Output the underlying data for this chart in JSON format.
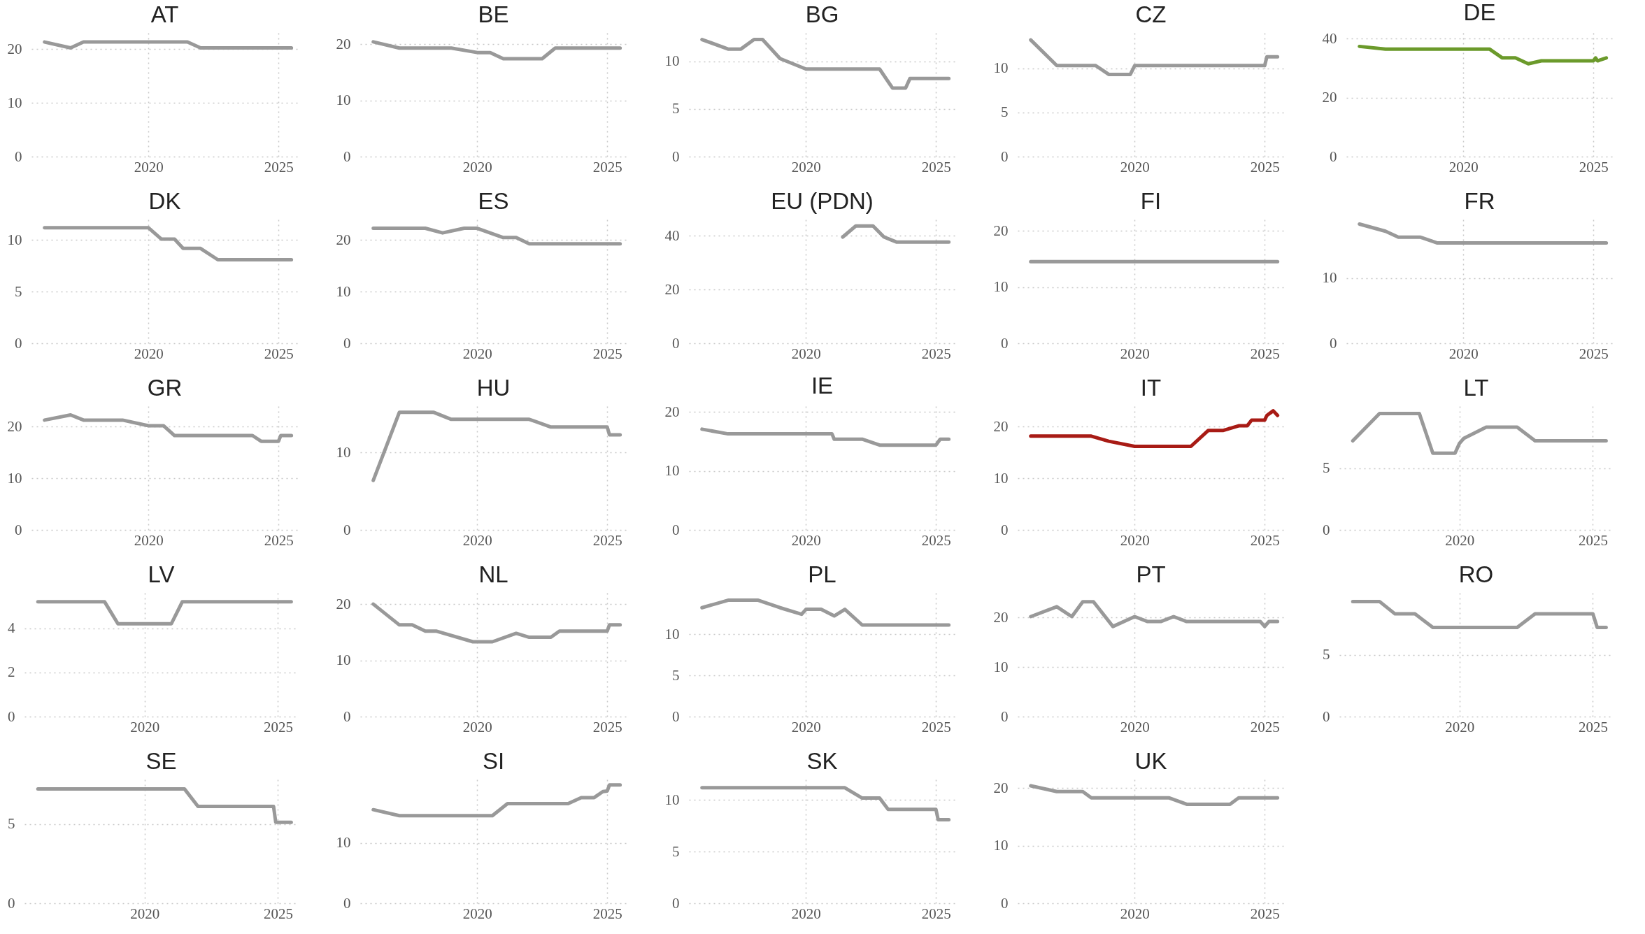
{
  "chart_data": [
    {
      "type": "line",
      "title": "AT",
      "x": [
        "2016",
        "2017",
        "2017-07",
        "2021-07",
        "2022",
        "2025-07"
      ],
      "series": [
        {
          "color": "#999999",
          "values": [
            21.3,
            20.2,
            21.3,
            21.3,
            20.2,
            20.2
          ]
        }
      ],
      "xlim": [
        "2015-07",
        "2025-10"
      ],
      "xticks": [
        "2020",
        "2025"
      ],
      "ylim": [
        0,
        23
      ],
      "yticks": [
        0,
        10,
        20
      ],
      "grid": true
    },
    {
      "type": "line",
      "title": "BE",
      "x": [
        "2016",
        "2017",
        "2019",
        "2020",
        "2020-07",
        "2021",
        "2022-07",
        "2023",
        "2025-07"
      ],
      "series": [
        {
          "color": "#999999",
          "values": [
            20.4,
            19.3,
            19.3,
            18.5,
            18.5,
            17.4,
            17.4,
            19.3,
            19.3
          ]
        }
      ],
      "xlim": [
        "2015-07",
        "2025-10"
      ],
      "xticks": [
        "2020",
        "2025"
      ],
      "ylim": [
        0,
        22
      ],
      "yticks": [
        0,
        10,
        20
      ],
      "grid": true
    },
    {
      "type": "line",
      "title": "BG",
      "x": [
        "2016",
        "2017",
        "2017-07",
        "2018",
        "2018-05",
        "2019",
        "2020",
        "2022-11",
        "2023-05",
        "2023-11",
        "2024",
        "2025-07"
      ],
      "series": [
        {
          "color": "#999999",
          "values": [
            12.3,
            11.3,
            11.3,
            12.3,
            12.3,
            10.3,
            9.2,
            9.2,
            7.2,
            7.2,
            8.2,
            8.2
          ]
        }
      ],
      "xlim": [
        "2015-07",
        "2025-10"
      ],
      "xticks": [
        "2020",
        "2025"
      ],
      "ylim": [
        0,
        13
      ],
      "yticks": [
        0,
        5,
        10
      ],
      "grid": true
    },
    {
      "type": "line",
      "title": "CZ",
      "x": [
        "2016",
        "2017",
        "2018-07",
        "2019",
        "2019-11",
        "2020",
        "2025",
        "2025-02",
        "2025-07"
      ],
      "series": [
        {
          "color": "#999999",
          "values": [
            13.2,
            10.3,
            10.3,
            9.3,
            9.3,
            10.3,
            10.3,
            11.3,
            11.3
          ]
        }
      ],
      "xlim": [
        "2015-07",
        "2025-10"
      ],
      "xticks": [
        "2020",
        "2025"
      ],
      "ylim": [
        0,
        14
      ],
      "yticks": [
        0,
        5,
        10
      ],
      "grid": true
    },
    {
      "type": "line",
      "title": "DE",
      "x": [
        "2016",
        "2017",
        "2021",
        "2021-07",
        "2022",
        "2022-07",
        "2023",
        "2025",
        "2025-02",
        "2025-03",
        "2025-07"
      ],
      "series": [
        {
          "color": "#6b9a2b",
          "values": [
            37.4,
            36.5,
            36.5,
            33.5,
            33.5,
            31.5,
            32.5,
            32.5,
            33.5,
            32.5,
            33.5
          ]
        }
      ],
      "xlim": [
        "2015-07",
        "2025-10"
      ],
      "xticks": [
        "2020",
        "2025"
      ],
      "ylim": [
        0,
        42
      ],
      "yticks": [
        0,
        20,
        40
      ],
      "grid": true
    },
    {
      "type": "line",
      "title": "DK",
      "x": [
        "2016",
        "2020",
        "2020-07",
        "2021",
        "2021-05",
        "2022",
        "2022-09",
        "2025-07"
      ],
      "series": [
        {
          "color": "#999999",
          "values": [
            11.2,
            11.2,
            10.1,
            10.1,
            9.2,
            9.2,
            8.1,
            8.1
          ]
        }
      ],
      "xlim": [
        "2015-07",
        "2025-10"
      ],
      "xticks": [
        "2020",
        "2025"
      ],
      "ylim": [
        0,
        12
      ],
      "yticks": [
        0,
        5,
        10
      ],
      "grid": true
    },
    {
      "type": "line",
      "title": "ES",
      "x": [
        "2016",
        "2018",
        "2018-09",
        "2019-07",
        "2020",
        "2021",
        "2021-07",
        "2022",
        "2025-07"
      ],
      "series": [
        {
          "color": "#999999",
          "values": [
            22.3,
            22.3,
            21.4,
            22.3,
            22.3,
            20.5,
            20.5,
            19.3,
            19.3
          ]
        }
      ],
      "xlim": [
        "2015-07",
        "2025-10"
      ],
      "xticks": [
        "2020",
        "2025"
      ],
      "ylim": [
        0,
        24
      ],
      "yticks": [
        0,
        10,
        20
      ],
      "grid": true
    },
    {
      "type": "line",
      "title": "EU (PDN)",
      "x": [
        "2021-06",
        "2021-12",
        "2022-08",
        "2023",
        "2023-07",
        "2025-07"
      ],
      "series": [
        {
          "color": "#999999",
          "values": [
            39.5,
            43.6,
            43.6,
            39.5,
            37.6,
            37.6
          ]
        }
      ],
      "xlim": [
        "2015-07",
        "2025-10"
      ],
      "xticks": [
        "2020",
        "2025"
      ],
      "ylim": [
        0,
        46
      ],
      "yticks": [
        0,
        20,
        40
      ],
      "grid": true
    },
    {
      "type": "line",
      "title": "FI",
      "x": [
        "2016",
        "2025-07"
      ],
      "series": [
        {
          "color": "#999999",
          "values": [
            14.5,
            14.5
          ]
        }
      ],
      "xlim": [
        "2015-07",
        "2025-10"
      ],
      "xticks": [
        "2020",
        "2025"
      ],
      "ylim": [
        0,
        22
      ],
      "yticks": [
        0,
        10,
        20
      ],
      "grid": true
    },
    {
      "type": "line",
      "title": "FR",
      "x": [
        "2016",
        "2017",
        "2017-07",
        "2018-05",
        "2019",
        "2025-07"
      ],
      "series": [
        {
          "color": "#999999",
          "values": [
            18.3,
            17.2,
            16.3,
            16.3,
            15.4,
            15.4
          ]
        }
      ],
      "xlim": [
        "2015-07",
        "2025-10"
      ],
      "xticks": [
        "2020",
        "2025"
      ],
      "ylim": [
        0,
        19
      ],
      "yticks": [
        0,
        10
      ],
      "grid": true
    },
    {
      "type": "line",
      "title": "GR",
      "x": [
        "2016",
        "2017",
        "2017-07",
        "2019",
        "2020",
        "2020-08",
        "2021",
        "2024",
        "2024-05",
        "2025",
        "2025-02",
        "2025-07"
      ],
      "series": [
        {
          "color": "#999999",
          "values": [
            21.3,
            22.3,
            21.3,
            21.3,
            20.2,
            20.2,
            18.3,
            18.3,
            17.2,
            17.2,
            18.3,
            18.3
          ]
        }
      ],
      "xlim": [
        "2015-07",
        "2025-10"
      ],
      "xticks": [
        "2020",
        "2025"
      ],
      "ylim": [
        0,
        24
      ],
      "yticks": [
        0,
        10,
        20
      ],
      "grid": true
    },
    {
      "type": "line",
      "title": "HU",
      "x": [
        "2016",
        "2017",
        "2018-05",
        "2019",
        "2022",
        "2022-11",
        "2025",
        "2025-02",
        "2025-07"
      ],
      "series": [
        {
          "color": "#999999",
          "values": [
            6.4,
            15.2,
            15.2,
            14.3,
            14.3,
            13.3,
            13.3,
            12.3,
            12.3
          ]
        }
      ],
      "xlim": [
        "2015-07",
        "2025-10"
      ],
      "xticks": [
        "2020",
        "2025"
      ],
      "ylim": [
        0,
        16
      ],
      "yticks": [
        0,
        10
      ],
      "grid": true
    },
    {
      "type": "line",
      "title": "IE",
      "x": [
        "2016",
        "2017",
        "2021",
        "2021-02",
        "2022-03",
        "2022-11",
        "2025",
        "2025-03",
        "2025-07"
      ],
      "series": [
        {
          "color": "#999999",
          "values": [
            17.1,
            16.3,
            16.3,
            15.4,
            15.4,
            14.4,
            14.4,
            15.4,
            15.4
          ]
        }
      ],
      "xlim": [
        "2015-07",
        "2025-10"
      ],
      "xticks": [
        "2020",
        "2025"
      ],
      "ylim": [
        0,
        21
      ],
      "yticks": [
        0,
        10,
        20
      ],
      "grid": true
    },
    {
      "type": "line",
      "title": "IT",
      "x": [
        "2016",
        "2018-05",
        "2019",
        "2020",
        "2022-03",
        "2022-11",
        "2023-06",
        "2024",
        "2024-05",
        "2024-07",
        "2025",
        "2025-02",
        "2025-05",
        "2025-07"
      ],
      "series": [
        {
          "color": "#a81b15",
          "values": [
            18.2,
            18.2,
            17.2,
            16.2,
            16.2,
            19.3,
            19.3,
            20.2,
            20.2,
            21.3,
            21.3,
            22.2,
            23.1,
            22.2
          ]
        }
      ],
      "xlim": [
        "2015-07",
        "2025-10"
      ],
      "xticks": [
        "2020",
        "2025"
      ],
      "ylim": [
        0,
        24
      ],
      "yticks": [
        0,
        10,
        20
      ],
      "grid": true
    },
    {
      "type": "line",
      "title": "LT",
      "x": [
        "2016",
        "2017",
        "2018-07",
        "2019",
        "2019-11",
        "2020",
        "2020-03",
        "2021",
        "2022-03",
        "2022-11",
        "2025-07"
      ],
      "series": [
        {
          "color": "#999999",
          "values": [
            7.2,
            9.4,
            9.4,
            6.2,
            6.2,
            7,
            7.4,
            8.3,
            8.3,
            7.2,
            7.2
          ]
        }
      ],
      "xlim": [
        "2015-07",
        "2025-10"
      ],
      "xticks": [
        "2020",
        "2025"
      ],
      "ylim": [
        0,
        10
      ],
      "yticks": [
        0,
        5
      ],
      "grid": true
    },
    {
      "type": "line",
      "title": "LV",
      "x": [
        "2016",
        "2018-07",
        "2019",
        "2021",
        "2021-06",
        "2025-07"
      ],
      "series": [
        {
          "color": "#999999",
          "values": [
            5.2,
            5.2,
            4.2,
            4.2,
            5.2,
            5.2
          ]
        }
      ],
      "xlim": [
        "2015-07",
        "2025-10"
      ],
      "xticks": [
        "2020",
        "2025"
      ],
      "ylim": [
        0,
        5.6
      ],
      "yticks": [
        0,
        2,
        4
      ],
      "grid": true
    },
    {
      "type": "line",
      "title": "NL",
      "x": [
        "2016",
        "2017",
        "2017-07",
        "2018",
        "2018-06",
        "2019-11",
        "2020-08",
        "2021-07",
        "2022",
        "2022-11",
        "2023-03",
        "2025",
        "2025-02",
        "2025-07"
      ],
      "series": [
        {
          "color": "#999999",
          "values": [
            20,
            16.3,
            16.3,
            15.2,
            15.2,
            13.3,
            13.3,
            14.8,
            14.1,
            14.1,
            15.2,
            15.2,
            16.3,
            16.3
          ]
        }
      ],
      "xlim": [
        "2015-07",
        "2025-10"
      ],
      "xticks": [
        "2020",
        "2025"
      ],
      "ylim": [
        0,
        22
      ],
      "yticks": [
        0,
        10,
        20
      ],
      "grid": true
    },
    {
      "type": "line",
      "title": "PL",
      "x": [
        "2016",
        "2017",
        "2018-03",
        "2019",
        "2019-11",
        "2020",
        "2020-08",
        "2021-02",
        "2021-07",
        "2022-03",
        "2025-07"
      ],
      "series": [
        {
          "color": "#999999",
          "values": [
            13.2,
            14.1,
            14.1,
            13.2,
            12.4,
            13,
            13,
            12.2,
            13,
            11.1,
            11.1
          ]
        }
      ],
      "xlim": [
        "2015-07",
        "2025-10"
      ],
      "xticks": [
        "2020",
        "2025"
      ],
      "ylim": [
        0,
        15
      ],
      "yticks": [
        0,
        5,
        10
      ],
      "grid": true
    },
    {
      "type": "line",
      "title": "PT",
      "x": [
        "2016",
        "2017",
        "2017-08",
        "2018",
        "2018-06",
        "2019-03",
        "2020",
        "2020-07",
        "2021",
        "2021-07",
        "2022",
        "2024-11",
        "2025",
        "2025-03",
        "2025-07"
      ],
      "series": [
        {
          "color": "#999999",
          "values": [
            20.2,
            22.2,
            20.2,
            23.2,
            23.2,
            18.2,
            20.2,
            19.2,
            19.2,
            20.2,
            19.2,
            19.2,
            18.2,
            19.2,
            19.2
          ]
        }
      ],
      "xlim": [
        "2015-07",
        "2025-10"
      ],
      "xticks": [
        "2020",
        "2025"
      ],
      "ylim": [
        0,
        25
      ],
      "yticks": [
        0,
        10,
        20
      ],
      "grid": true
    },
    {
      "type": "line",
      "title": "RO",
      "x": [
        "2016",
        "2017",
        "2017-08",
        "2018-05",
        "2019",
        "2022-03",
        "2022-11",
        "2025",
        "2025-03",
        "2025-07"
      ],
      "series": [
        {
          "color": "#999999",
          "values": [
            9.3,
            9.3,
            8.3,
            8.3,
            7.2,
            7.2,
            8.3,
            8.3,
            7.2,
            7.2
          ]
        }
      ],
      "xlim": [
        "2015-07",
        "2025-10"
      ],
      "xticks": [
        "2020",
        "2025"
      ],
      "ylim": [
        0,
        10
      ],
      "yticks": [
        0,
        5
      ],
      "grid": true
    },
    {
      "type": "line",
      "title": "SE",
      "x": [
        "2016",
        "2021-07",
        "2022",
        "2024-11",
        "2024-12",
        "2025-07"
      ],
      "series": [
        {
          "color": "#999999",
          "values": [
            7.2,
            7.2,
            6.1,
            6.1,
            5.1,
            5.1
          ]
        }
      ],
      "xlim": [
        "2015-07",
        "2025-10"
      ],
      "xticks": [
        "2020",
        "2025"
      ],
      "ylim": [
        0,
        7.8
      ],
      "yticks": [
        0,
        5
      ],
      "grid": true
    },
    {
      "type": "line",
      "title": "SI",
      "x": [
        "2016",
        "2017",
        "2020-08",
        "2021-03",
        "2023-07",
        "2024",
        "2024-07",
        "2024-11",
        "2025",
        "2025-02",
        "2025-07"
      ],
      "series": [
        {
          "color": "#999999",
          "values": [
            15.5,
            14.5,
            14.5,
            16.5,
            16.5,
            17.5,
            17.5,
            18.5,
            18.6,
            19.6,
            19.6
          ]
        }
      ],
      "xlim": [
        "2015-07",
        "2025-10"
      ],
      "xticks": [
        "2020",
        "2025"
      ],
      "ylim": [
        0,
        20.5
      ],
      "yticks": [
        0,
        10
      ],
      "grid": true
    },
    {
      "type": "line",
      "title": "SK",
      "x": [
        "2016",
        "2021-07",
        "2022-03",
        "2022-11",
        "2023-03",
        "2025",
        "2025-02",
        "2025-07"
      ],
      "series": [
        {
          "color": "#999999",
          "values": [
            11.2,
            11.2,
            10.2,
            10.2,
            9.1,
            9.1,
            8.1,
            8.1
          ]
        }
      ],
      "xlim": [
        "2015-07",
        "2025-10"
      ],
      "xticks": [
        "2020",
        "2025"
      ],
      "ylim": [
        0,
        12
      ],
      "yticks": [
        0,
        5,
        10
      ],
      "grid": true
    },
    {
      "type": "line",
      "title": "UK",
      "x": [
        "2016",
        "2017",
        "2018",
        "2018-05",
        "2021-05",
        "2022",
        "2023-09",
        "2024",
        "2025-07"
      ],
      "series": [
        {
          "color": "#999999",
          "values": [
            20.4,
            19.4,
            19.4,
            18.3,
            18.3,
            17.2,
            17.2,
            18.3,
            18.3
          ]
        }
      ],
      "xlim": [
        "2015-07",
        "2025-10"
      ],
      "xticks": [
        "2020",
        "2025"
      ],
      "ylim": [
        0,
        21.5
      ],
      "yticks": [
        0,
        10,
        20
      ],
      "grid": true
    }
  ]
}
